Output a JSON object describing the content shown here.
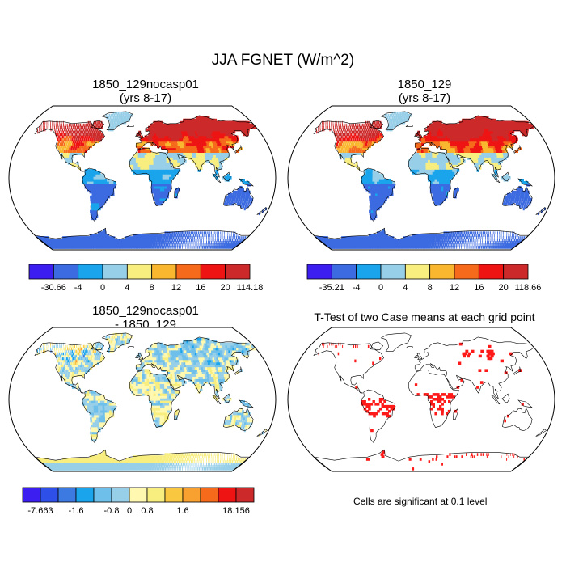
{
  "figure": {
    "title": "JJA FGNET (W/m^2)",
    "note": "Cells are significant at 0.1 level"
  },
  "panels": {
    "p1": {
      "title_line1": "1850_129nocasp01",
      "title_line2": "(yrs 8-17)"
    },
    "p2": {
      "title_line1": "1850_129",
      "title_line2": "(yrs 8-17)"
    },
    "p3": {
      "title_line1": "1850_129nocasp01",
      "title_line2": "- 1850_129"
    },
    "p4": {
      "title_line1": "T-Test of two Case means at each grid point"
    }
  },
  "colorbars": {
    "cb1": {
      "colors": [
        "#3c1ef0",
        "#3c6ae0",
        "#19a4ec",
        "#98cfe8",
        "#f8ee80",
        "#f9b730",
        "#f66a1c",
        "#ee1414",
        "#cc2a2a"
      ],
      "labels": [
        "-30.66",
        "-4",
        "0",
        "4",
        "8",
        "12",
        "16",
        "20",
        "114.18"
      ]
    },
    "cb2": {
      "colors": [
        "#3c1ef0",
        "#3c6ae0",
        "#19a4ec",
        "#98cfe8",
        "#f8ee80",
        "#f9b730",
        "#f66a1c",
        "#ee1414",
        "#cc2a2a"
      ],
      "labels": [
        "-35.21",
        "-4",
        "0",
        "4",
        "8",
        "12",
        "16",
        "20",
        "118.66"
      ]
    },
    "cb3": {
      "colors": [
        "#3c1ef0",
        "#2e4fe8",
        "#3c79e0",
        "#19a4ec",
        "#6ec0ea",
        "#98cfe8",
        "#fff8b0",
        "#f8ee80",
        "#f9c840",
        "#f8a030",
        "#f66a1c",
        "#ee1414",
        "#cc2a2a"
      ],
      "labels": [
        "-7.663",
        "-1.6",
        "-0.8",
        "0",
        "0.8",
        "1.6",
        "18.156"
      ]
    }
  }
}
